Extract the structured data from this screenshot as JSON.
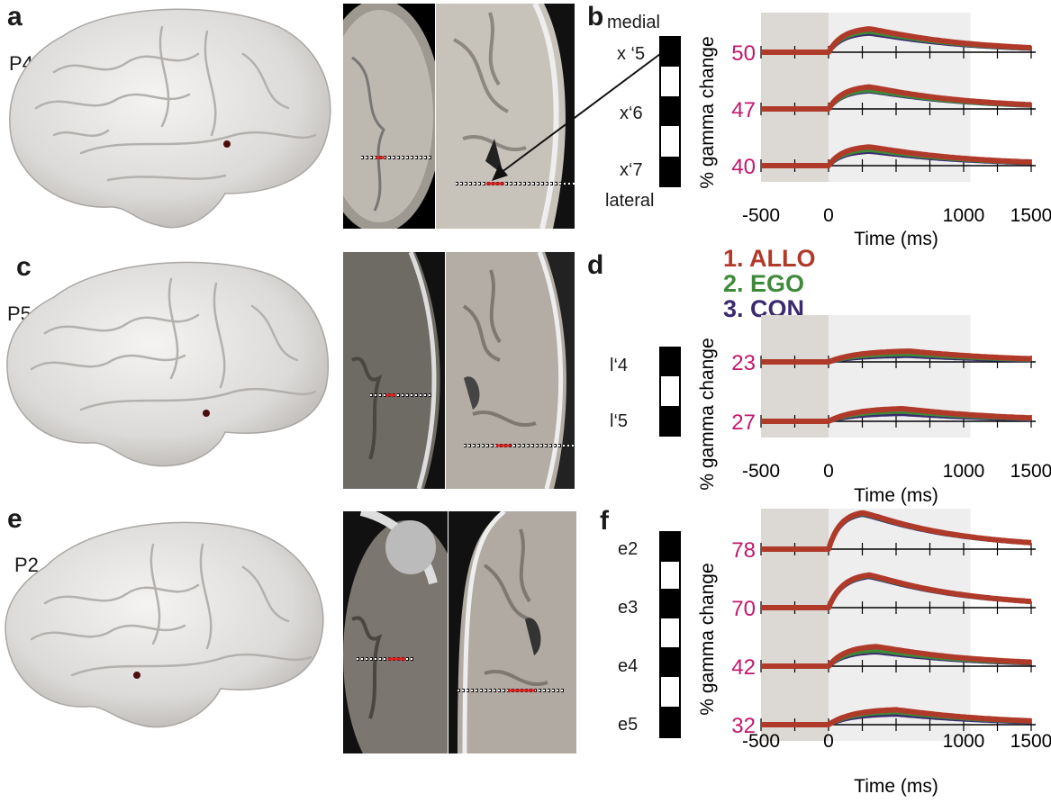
{
  "panels": {
    "a": {
      "letter": "a",
      "patient": "P4"
    },
    "b": {
      "letter": "b",
      "medial": "medial",
      "lateral": "lateral",
      "contacts": [
        "x ‘5",
        "x‘6",
        "x‘7"
      ]
    },
    "c": {
      "letter": "c",
      "patient": "P5"
    },
    "d": {
      "letter": "d",
      "contacts": [
        "l‘4",
        "l‘5"
      ]
    },
    "e": {
      "letter": "e",
      "patient": "P2"
    },
    "f": {
      "letter": "f",
      "contacts": [
        "e2",
        "e3",
        "e4",
        "e5"
      ]
    }
  },
  "legend": [
    {
      "label": "1. ALLO",
      "color": "#b03a2a"
    },
    {
      "label": "2. EGO",
      "color": "#3f8a3a"
    },
    {
      "label": "3. CON",
      "color": "#3b2a6e"
    }
  ],
  "colors": {
    "allo": "#b03a2a",
    "ego": "#3f8a3a",
    "con": "#3b2a6e",
    "value_label": "#c2186b",
    "brain": "#e4e2e0",
    "shade_baseline": "#dcd8d4",
    "shade_task": "#eeeeee"
  },
  "chart_data": [
    {
      "type": "line",
      "panel": "b",
      "ylabel": "% gamma change",
      "xlabel": "Time (ms)",
      "xlim": [
        -500,
        1500
      ],
      "xticks": [
        "-500",
        "0",
        "1000",
        "1500"
      ],
      "shaded_intervals": [
        [
          -500,
          0
        ],
        [
          0,
          1050
        ]
      ],
      "traces": [
        {
          "label": "50",
          "peak": {
            "ALLO": 50,
            "EGO": 44,
            "CON": 40
          },
          "peak_time": 300
        },
        {
          "label": "47",
          "peak": {
            "ALLO": 47,
            "EGO": 40,
            "CON": 38
          },
          "peak_time": 300
        },
        {
          "label": "40",
          "peak": {
            "ALLO": 40,
            "EGO": 34,
            "CON": 30
          },
          "peak_time": 300
        }
      ]
    },
    {
      "type": "line",
      "panel": "d",
      "ylabel": "% gamma change",
      "xlabel": "Time (ms)",
      "xlim": [
        -500,
        1500
      ],
      "xticks": [
        "-500",
        "0",
        "1000",
        "1500"
      ],
      "shaded_intervals": [
        [
          -500,
          0
        ],
        [
          0,
          1050
        ]
      ],
      "traces": [
        {
          "label": "23",
          "peak": {
            "ALLO": 23,
            "EGO": 17,
            "CON": 13
          },
          "peak_time": 600
        },
        {
          "label": "27",
          "peak": {
            "ALLO": 27,
            "EGO": 21,
            "CON": 16
          },
          "peak_time": 550
        }
      ]
    },
    {
      "type": "line",
      "panel": "f",
      "ylabel": "% gamma change",
      "xlabel": "Time (ms)",
      "xlim": [
        -500,
        1500
      ],
      "xticks": [
        "-500",
        "0",
        "1000",
        "1500"
      ],
      "shaded_intervals": [
        [
          -500,
          0
        ],
        [
          0,
          1050
        ]
      ],
      "traces": [
        {
          "label": "78",
          "peak": {
            "ALLO": 78,
            "EGO": 76,
            "CON": 74
          },
          "peak_time": 250
        },
        {
          "label": "70",
          "peak": {
            "ALLO": 70,
            "EGO": 68,
            "CON": 66
          },
          "peak_time": 300
        },
        {
          "label": "42",
          "peak": {
            "ALLO": 42,
            "EGO": 34,
            "CON": 30
          },
          "peak_time": 350
        },
        {
          "label": "32",
          "peak": {
            "ALLO": 32,
            "EGO": 27,
            "CON": 22
          },
          "peak_time": 500
        }
      ]
    }
  ]
}
